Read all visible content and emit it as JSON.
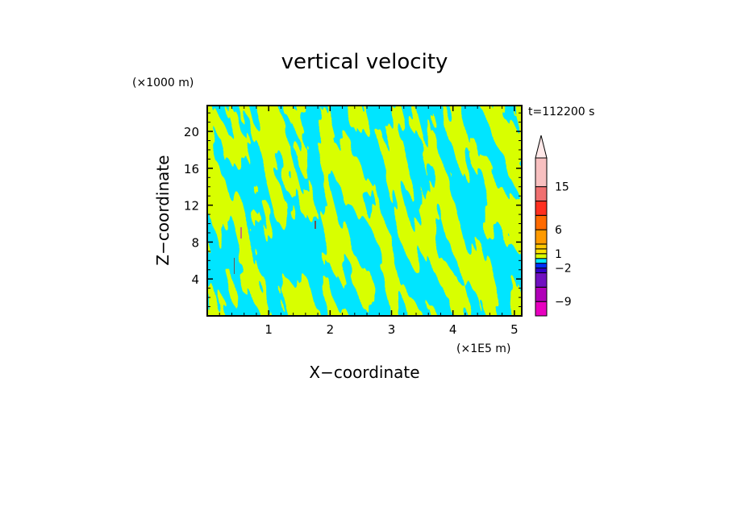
{
  "chart_data": {
    "type": "heatmap",
    "title": "vertical velocity",
    "xlabel": "X−coordinate",
    "ylabel": "Z−coordinate",
    "x_unit": "(×1E5 m)",
    "y_unit": "(×1000 m)",
    "time_label": "t=112200 s",
    "xlim": [
      0,
      5.12
    ],
    "ylim": [
      0,
      22.8
    ],
    "x_ticks": [
      1,
      2,
      3,
      4,
      5
    ],
    "y_ticks": [
      4,
      8,
      12,
      16,
      20
    ],
    "field_colors": {
      "negative": "#00e5ff",
      "positive": "#d8ff00",
      "spot": "#d07070"
    },
    "colorbar": {
      "tick_labels": [
        {
          "value": 15,
          "label": "15"
        },
        {
          "value": 6,
          "label": "6"
        },
        {
          "value": 1,
          "label": "1"
        },
        {
          "value": -2,
          "label": "−2"
        },
        {
          "value": -9,
          "label": "−9"
        }
      ],
      "bins": [
        {
          "lo": -12,
          "hi": -9,
          "color": "#e800c0"
        },
        {
          "lo": -9,
          "hi": -6,
          "color": "#b000b8"
        },
        {
          "lo": -6,
          "hi": -3,
          "color": "#7010c0"
        },
        {
          "lo": -3,
          "hi": -2,
          "color": "#3000c8"
        },
        {
          "lo": -2,
          "hi": -1,
          "color": "#0030ff"
        },
        {
          "lo": -1,
          "hi": 0,
          "color": "#00e5ff"
        },
        {
          "lo": 0,
          "hi": 1,
          "color": "#d8ff00"
        },
        {
          "lo": 1,
          "hi": 2,
          "color": "#ffe000"
        },
        {
          "lo": 2,
          "hi": 3,
          "color": "#ffc800"
        },
        {
          "lo": 3,
          "hi": 6,
          "color": "#ff9a00"
        },
        {
          "lo": 6,
          "hi": 9,
          "color": "#ff6a00"
        },
        {
          "lo": 9,
          "hi": 12,
          "color": "#ff3020"
        },
        {
          "lo": 12,
          "hi": 15,
          "color": "#f07070"
        },
        {
          "lo": 15,
          "hi": 21,
          "color": "#f8c0c0"
        }
      ],
      "extend_max_color": "#ffe8e8"
    }
  }
}
